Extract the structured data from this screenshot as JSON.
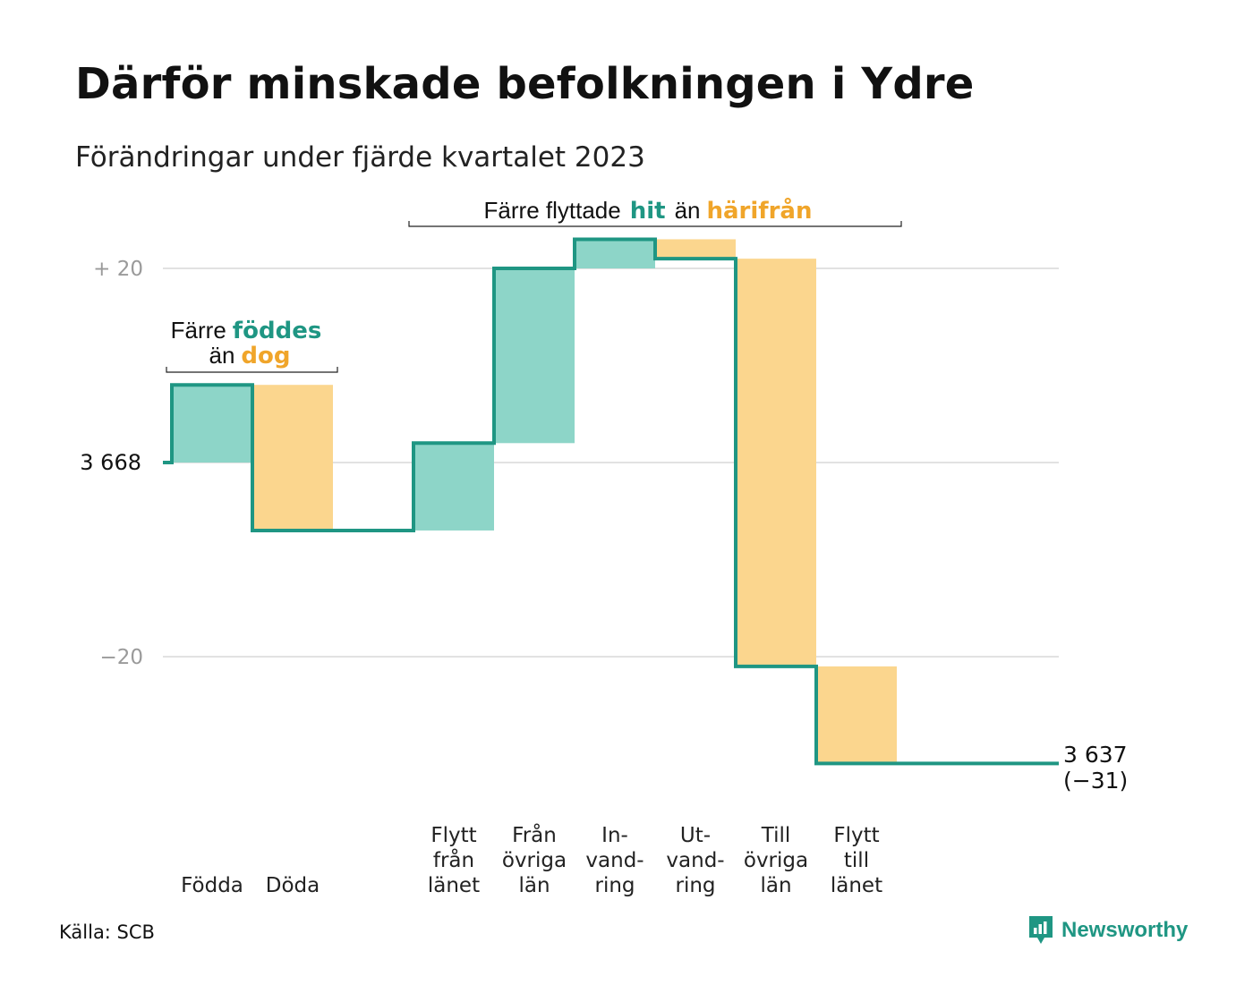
{
  "title": "Därför minskade befolkningen i Ydre",
  "subtitle": "Förändringar under fjärde kvartalet 2023",
  "source": "Källa: SCB",
  "logo_text": "Newsworthy",
  "colors": {
    "increase": "#8dd5c8",
    "decrease": "#fbd68e",
    "line": "#1f9683",
    "grid": "#e2e2e2",
    "accent_teal": "#1f9683",
    "accent_orange": "#f0a52a"
  },
  "annotations": {
    "births": {
      "pre": "Färre",
      "hit": "föddes",
      "mid": "än",
      "away": "dog"
    },
    "moves": {
      "pre": "Färre flyttade",
      "hit": "hit",
      "mid": "än",
      "away": "härifrån"
    }
  },
  "chart_data": {
    "type": "waterfall",
    "start_value": 3668,
    "start_label": "3  668",
    "end_value": 3637,
    "end_label": "3 637",
    "end_change_label": "(−31)",
    "y_ticks": [
      {
        "offset": 20,
        "label": "+  20"
      },
      {
        "offset": -20,
        "label": "−20"
      }
    ],
    "categories": [
      {
        "key": "fodda",
        "label_lines": [
          "Födda"
        ],
        "change": 8
      },
      {
        "key": "doda",
        "label_lines": [
          "Döda"
        ],
        "change": -15
      },
      {
        "key": "flytt-fran-lanet",
        "label_lines": [
          "Flytt",
          "från",
          "länet"
        ],
        "change": 9
      },
      {
        "key": "fran-ovriga-lan",
        "label_lines": [
          "Från",
          "övriga",
          "län"
        ],
        "change": 18
      },
      {
        "key": "invandring",
        "label_lines": [
          "In-",
          "vand-",
          "ring"
        ],
        "change": 3
      },
      {
        "key": "utvandring",
        "label_lines": [
          "Ut-",
          "vand-",
          "ring"
        ],
        "change": -2
      },
      {
        "key": "till-ovriga-lan",
        "label_lines": [
          "Till",
          "övriga",
          "län"
        ],
        "change": -42
      },
      {
        "key": "flytt-till-lanet",
        "label_lines": [
          "Flytt",
          "till",
          "länet"
        ],
        "change": -10
      }
    ]
  }
}
